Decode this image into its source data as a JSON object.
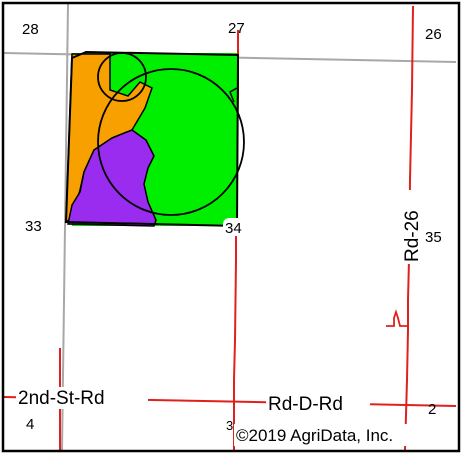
{
  "colors": {
    "section_line": "#a8a8a8",
    "road": "#e0201c",
    "frame": "#000000",
    "soil_green": "#00ef00",
    "soil_orange": "#f8a000",
    "soil_purple": "#9a2cf0",
    "field_outline": "#000000"
  },
  "sections": {
    "s28": "28",
    "s27": "27",
    "s26": "26",
    "s33": "33",
    "s34": "34",
    "s35": "35",
    "s4": "4",
    "s3": "3",
    "s2": "2"
  },
  "roads": {
    "second_st_rd": "2nd-St-Rd",
    "rd_d_rd": "Rd-D-Rd",
    "rd_26": "Rd-26"
  },
  "copyright": "©2019 AgriData, Inc."
}
